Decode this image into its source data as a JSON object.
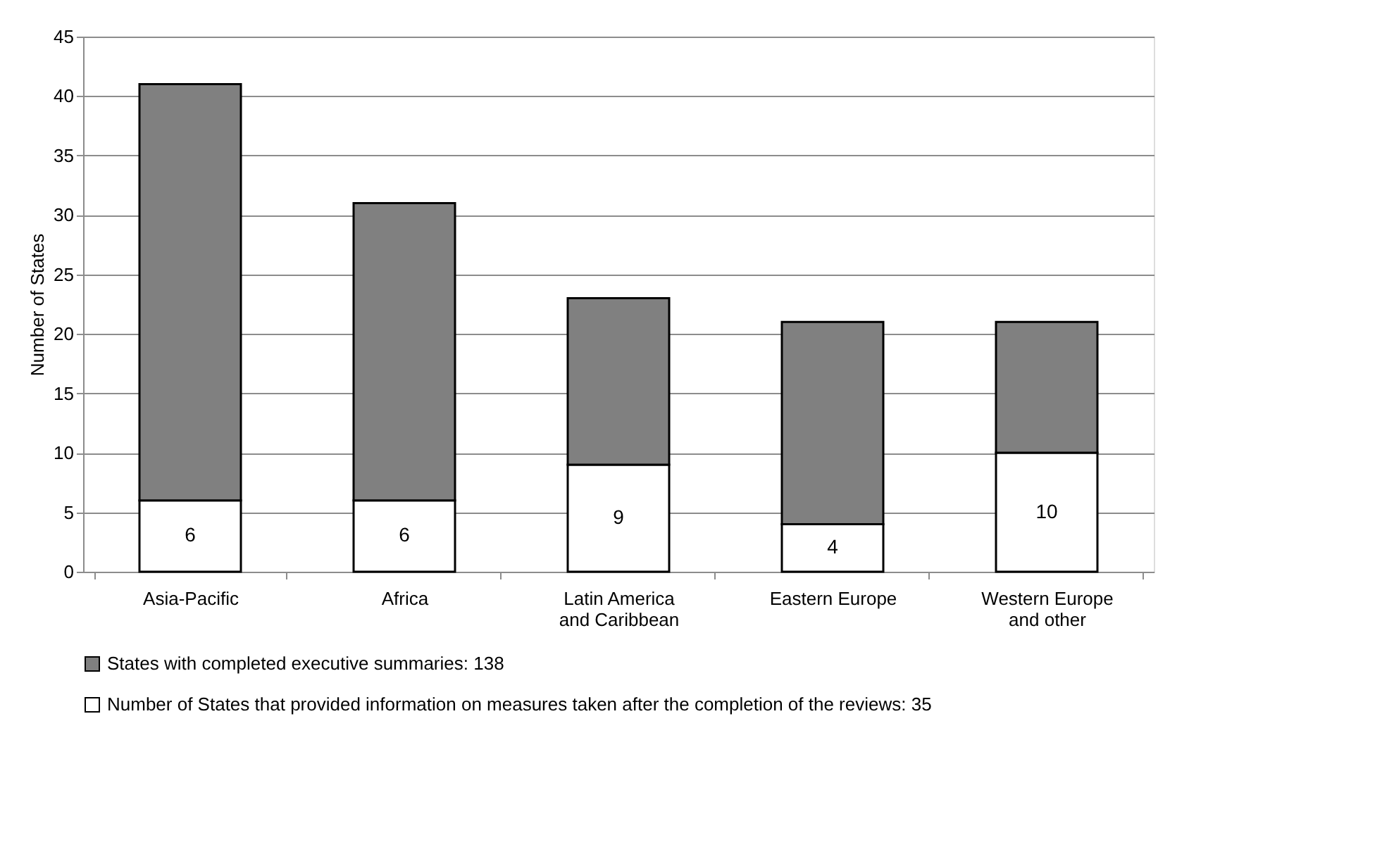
{
  "chart_data": {
    "type": "bar",
    "stacked": true,
    "ylabel": "Number of States",
    "categories": [
      "Asia-Pacific",
      "Africa",
      "Latin America and Caribbean",
      "Eastern Europe",
      "Western Europe and other"
    ],
    "series": [
      {
        "name": "Number of States that provided information on measures taken after the completion of the reviews: 35",
        "color": "#ffffff",
        "values": [
          6,
          6,
          9,
          4,
          10
        ],
        "value_labels": [
          "6",
          "6",
          "9",
          "4",
          "10"
        ]
      },
      {
        "name": "States with completed executive summaries: 138",
        "color": "#808080",
        "values": [
          35,
          25,
          14,
          17,
          11
        ]
      }
    ],
    "ylim": [
      0,
      45
    ],
    "yticks": [
      0,
      5,
      10,
      15,
      20,
      25,
      30,
      35,
      40,
      45
    ],
    "grid": "y",
    "legend": "bottom"
  }
}
